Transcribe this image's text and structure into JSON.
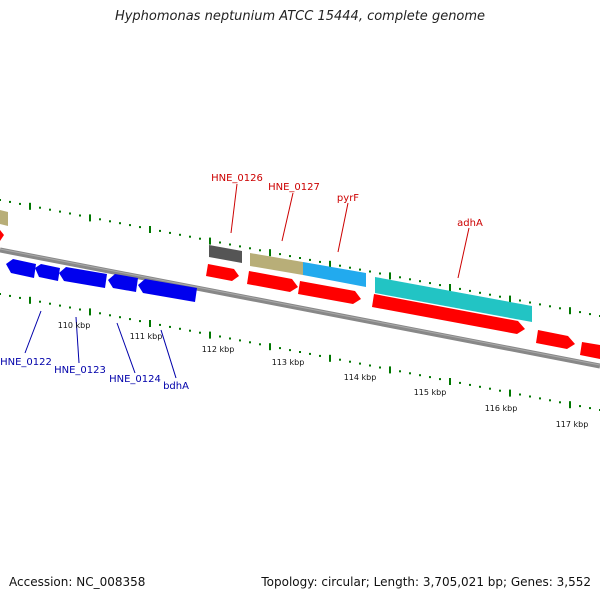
{
  "title": "Hyphomonas neptunium ATCC 15444, complete genome",
  "footer": {
    "accession": "Accession: NC_008358",
    "stats": "Topology: circular; Length: 3,705,021 bp; Genes: 3,552"
  },
  "colors": {
    "forward_gene": "#ff0000",
    "reverse_gene": "#0000ff",
    "trna": "#555555",
    "rrna_tan": "#b8ae78",
    "cds_cyan": "#22c4c4",
    "cds_sky": "#22aaee",
    "tick_green": "#007700",
    "backbone": "#888888",
    "label_red": "#cc0000",
    "label_blue": "#0000aa"
  },
  "scale_labels": [
    "110 kbp",
    "111 kbp",
    "112 kbp",
    "113 kbp",
    "114 kbp",
    "115 kbp",
    "116 kbp",
    "117 kbp"
  ],
  "gene_labels_top": [
    "HNE_0126",
    "HNE_0127",
    "pyrF",
    "adhA"
  ],
  "gene_labels_bottom": [
    "HNE_0122",
    "HNE_0123",
    "HNE_0124",
    "bdhA"
  ]
}
